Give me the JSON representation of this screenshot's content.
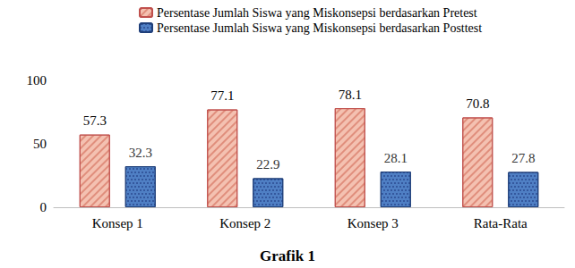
{
  "chart_data": {
    "type": "bar",
    "title": "Grafik 1",
    "categories": [
      "Konsep 1",
      "Konsep 2",
      "Konsep 3",
      "Rata-Rata"
    ],
    "series": [
      {
        "name": "Persentase Jumlah Siswa yang Miskonsepsi berdasarkan Pretest",
        "color": "#f4c1b1",
        "values": [
          57.3,
          77.1,
          78.1,
          70.8
        ]
      },
      {
        "name": "Persentase Jumlah Siswa yang Miskonsepsi berdasarkan Posttest",
        "color": "#4f7fc4",
        "values": [
          32.3,
          22.9,
          28.1,
          27.8
        ]
      }
    ],
    "ylim": [
      0,
      100
    ],
    "yticks": [
      0,
      50,
      100
    ],
    "grid": false,
    "legend": "top",
    "data_labels": true
  }
}
